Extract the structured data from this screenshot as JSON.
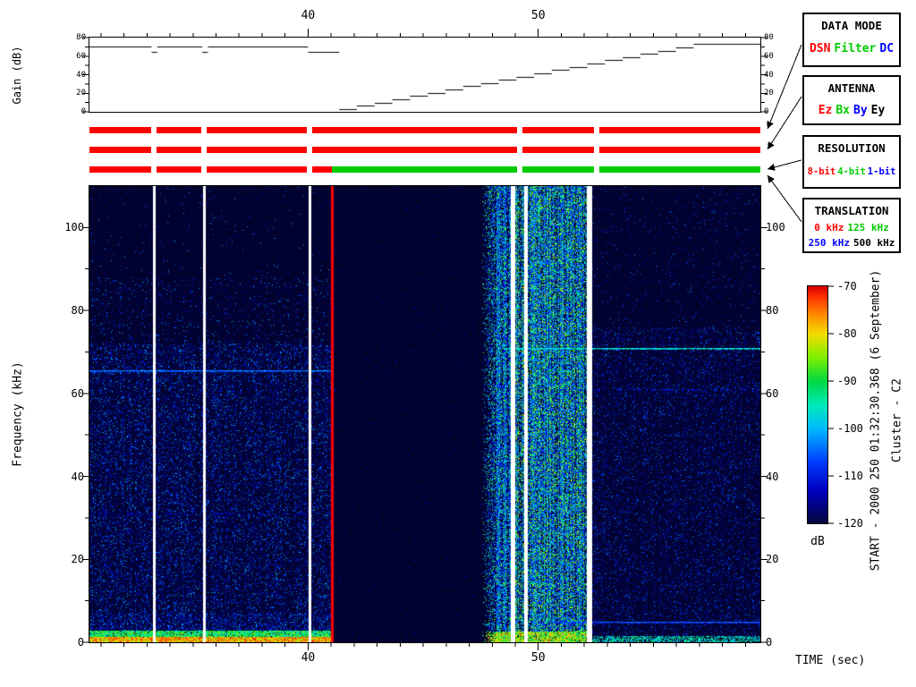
{
  "side_labels": {
    "start": "START - 2000 250 01:32:30.368 (6 September)",
    "spacecraft": "Cluster - C2"
  },
  "legend": {
    "boxes": [
      {
        "title": "DATA MODE",
        "lines": [
          [
            {
              "label": "DSN",
              "color": "#ff0000"
            },
            {
              "label": "Filter",
              "color": "#00cc00"
            },
            {
              "label": "DC",
              "color": "#0000ff"
            }
          ]
        ]
      },
      {
        "title": "ANTENNA",
        "lines": [
          [
            {
              "label": "Ez",
              "color": "#ff0000"
            },
            {
              "label": "Bx",
              "color": "#00cc00"
            },
            {
              "label": "By",
              "color": "#0000ff"
            },
            {
              "label": "Ey",
              "color": "#000000"
            }
          ]
        ]
      },
      {
        "title": "RESOLUTION",
        "lines": [
          [
            {
              "label": "8-bit",
              "color": "#ff0000"
            },
            {
              "label": "4-bit",
              "color": "#00cc00"
            },
            {
              "label": "1-bit",
              "color": "#0000ff"
            }
          ]
        ]
      },
      {
        "title": "TRANSLATION",
        "lines": [
          [
            {
              "label": "0 kHz",
              "color": "#ff0000"
            },
            {
              "label": "125 kHz",
              "color": "#00cc00"
            }
          ],
          [
            {
              "label": "250 kHz",
              "color": "#0000ff"
            },
            {
              "label": "500 kHz",
              "color": "#000000"
            }
          ]
        ]
      }
    ]
  },
  "chart_data": [
    {
      "type": "line",
      "name": "receiver-gain",
      "ylabel": "Gain (dB)",
      "ylim": [
        0,
        80
      ],
      "yticks": [
        0,
        20,
        40,
        60,
        80
      ],
      "xlim": [
        30.5,
        59.65
      ],
      "xticks": [
        40,
        50
      ],
      "x_minor_step": 1,
      "interpolation": "step-after",
      "points": [
        [
          30.5,
          70
        ],
        [
          33.2,
          65
        ],
        [
          33.45,
          70
        ],
        [
          35.4,
          65
        ],
        [
          35.65,
          70
        ],
        [
          40.0,
          65
        ],
        [
          41.35,
          3
        ],
        [
          42.12,
          6.5
        ],
        [
          42.89,
          10
        ],
        [
          43.66,
          13.5
        ],
        [
          44.43,
          17
        ],
        [
          45.2,
          20.5
        ],
        [
          45.97,
          24
        ],
        [
          46.74,
          27.5
        ],
        [
          47.51,
          31
        ],
        [
          48.28,
          34.5
        ],
        [
          49.05,
          38
        ],
        [
          49.82,
          41.5
        ],
        [
          50.59,
          45
        ],
        [
          51.36,
          48.5
        ],
        [
          52.13,
          52
        ],
        [
          52.9,
          55.5
        ],
        [
          53.67,
          59
        ],
        [
          54.44,
          62.5
        ],
        [
          55.21,
          66
        ],
        [
          55.98,
          69.5
        ],
        [
          56.75,
          73
        ],
        [
          59.65,
          73
        ]
      ]
    },
    {
      "type": "heatmap",
      "name": "wideband-spectrogram",
      "xlabel": "TIME (sec)",
      "ylabel": "Frequency (kHz)",
      "xlim": [
        30.5,
        59.65
      ],
      "ylim": [
        0,
        110
      ],
      "xticks": [
        40,
        50
      ],
      "yticks": [
        0,
        20,
        40,
        60,
        80,
        100
      ],
      "x_minor_step": 1,
      "y_minor_step": 10,
      "background_db": -122,
      "colorbar": {
        "label": "dB",
        "min": -120,
        "max": -70,
        "ticks": [
          -70,
          -80,
          -90,
          -100,
          -110,
          -120
        ]
      },
      "colormap_stops": [
        [
          -120,
          5,
          5,
          60
        ],
        [
          -113,
          0,
          0,
          190
        ],
        [
          -107,
          0,
          60,
          255
        ],
        [
          -100,
          0,
          185,
          255
        ],
        [
          -95,
          0,
          235,
          185
        ],
        [
          -90,
          0,
          215,
          70
        ],
        [
          -85,
          125,
          240,
          0
        ],
        [
          -80,
          245,
          220,
          0
        ],
        [
          -76,
          255,
          140,
          0
        ],
        [
          -72,
          255,
          45,
          0
        ],
        [
          -70,
          215,
          0,
          0
        ]
      ],
      "regions": [
        {
          "name": "ambient-noise",
          "t0": 30.5,
          "t1": 41.02,
          "character": "blue speckle dense below 72 kHz, bright 0-3 kHz band"
        },
        {
          "name": "data-quiet",
          "t0": 41.02,
          "t1": 47.55,
          "character": "near-empty dark background"
        },
        {
          "name": "intense-broadband",
          "t0": 47.55,
          "t1": 52.3,
          "character": "dense cyan-green broadband emission 0-110 kHz"
        },
        {
          "name": "ambient-noise-weak",
          "t0": 52.3,
          "t1": 59.65,
          "character": "sparse blue speckle"
        }
      ],
      "vertical_lines": [
        {
          "t": 33.3,
          "color": "#ffffff",
          "width_s": 0.12
        },
        {
          "t": 35.48,
          "color": "#ffffff",
          "width_s": 0.12
        },
        {
          "t": 40.08,
          "color": "#ffffff",
          "width_s": 0.12
        },
        {
          "t": 41.05,
          "color": "#ff0000",
          "width_s": 0.1
        },
        {
          "t": 48.9,
          "color": "#ffffff",
          "width_s": 0.2
        },
        {
          "t": 49.45,
          "color": "#ffffff",
          "width_s": 0.16
        },
        {
          "t": 52.22,
          "color": "#ffffff",
          "width_s": 0.22
        }
      ],
      "horizontal_tones": [
        {
          "f_khz": 65.5,
          "t0": 30.5,
          "t1": 41.02,
          "db": -103,
          "dashed": false
        },
        {
          "f_khz": 71,
          "t0": 48.5,
          "t1": 59.65,
          "db": -95,
          "dashed": false
        },
        {
          "f_khz": 61,
          "t0": 50.7,
          "t1": 59.65,
          "db": -109,
          "dashed": true
        },
        {
          "f_khz": 5,
          "t0": 50.7,
          "t1": 59.65,
          "db": -105,
          "dashed": false
        },
        {
          "f_khz": 31,
          "t0": 30.5,
          "t1": 40.0,
          "db": -113,
          "dashed": true
        }
      ]
    },
    {
      "type": "table",
      "name": "status-bars",
      "bar_rows": [
        {
          "label": "bar-row-1",
          "segments": [
            {
              "t0": 30.5,
              "t1": 33.19,
              "color": "#ff0000"
            },
            {
              "t0": 33.42,
              "t1": 35.37,
              "color": "#ff0000"
            },
            {
              "t0": 35.6,
              "t1": 39.96,
              "color": "#ff0000"
            },
            {
              "t0": 40.19,
              "t1": 49.07,
              "color": "#ff0000"
            },
            {
              "t0": 49.3,
              "t1": 52.41,
              "color": "#ff0000"
            },
            {
              "t0": 52.65,
              "t1": 59.65,
              "color": "#ff0000"
            }
          ]
        },
        {
          "label": "bar-row-2",
          "segments": [
            {
              "t0": 30.5,
              "t1": 33.19,
              "color": "#ff0000"
            },
            {
              "t0": 33.42,
              "t1": 35.37,
              "color": "#ff0000"
            },
            {
              "t0": 35.6,
              "t1": 39.96,
              "color": "#ff0000"
            },
            {
              "t0": 40.19,
              "t1": 49.07,
              "color": "#ff0000"
            },
            {
              "t0": 49.3,
              "t1": 52.41,
              "color": "#ff0000"
            },
            {
              "t0": 52.65,
              "t1": 59.65,
              "color": "#ff0000"
            }
          ]
        },
        {
          "label": "bar-row-3",
          "segments": [
            {
              "t0": 30.5,
              "t1": 33.19,
              "color": "#ff0000"
            },
            {
              "t0": 33.42,
              "t1": 35.37,
              "color": "#ff0000"
            },
            {
              "t0": 35.6,
              "t1": 39.96,
              "color": "#ff0000"
            },
            {
              "t0": 40.19,
              "t1": 41.05,
              "color": "#ff0000"
            },
            {
              "t0": 41.05,
              "t1": 49.07,
              "color": "#00cc00"
            },
            {
              "t0": 49.3,
              "t1": 52.41,
              "color": "#00cc00"
            },
            {
              "t0": 52.65,
              "t1": 59.65,
              "color": "#00cc00"
            }
          ]
        }
      ]
    }
  ]
}
